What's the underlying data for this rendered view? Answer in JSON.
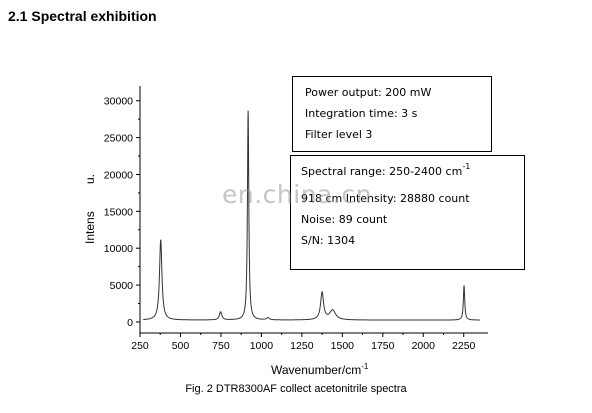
{
  "page": {
    "heading": "2.1 Spectral exhibition",
    "caption": "Fig. 2 DTR8300AF collect acetonitrile spectra",
    "watermark": "en.china.cn"
  },
  "annotations": {
    "box1": [
      "Power output: 200 mW",
      "Integration time: 3 s",
      "Filter level 3"
    ],
    "box2": {
      "range_prefix": "Spectral range: 250-2400 cm",
      "range_sup": "-1",
      "lines": [
        "918 cm   Intensity: 28880 count",
        "Noise: 89 count",
        "S/N: 1304"
      ]
    }
  },
  "colors": {
    "line": "#333333",
    "axis": "#000000"
  },
  "chart_data": {
    "type": "line",
    "title": "",
    "xlabel": "Wavenumber/cm",
    "xlabel_sup": "-1",
    "ylabel": "Intens",
    "ylabel_fragment": "u.",
    "xlim": [
      250,
      2400
    ],
    "ylim": [
      -1500,
      32000
    ],
    "xticks": [
      250,
      500,
      750,
      1000,
      1250,
      1500,
      1750,
      2000,
      2250
    ],
    "yticks": [
      0,
      5000,
      10000,
      15000,
      20000,
      25000,
      30000
    ],
    "series": [
      {
        "peaks": [
          {
            "x": 378,
            "y": 10900,
            "w": 9
          },
          {
            "x": 748,
            "y": 1100,
            "w": 9
          },
          {
            "x": 918,
            "y": 28400,
            "w": 5
          },
          {
            "x": 1040,
            "y": 300,
            "w": 10
          },
          {
            "x": 1375,
            "y": 3700,
            "w": 11
          },
          {
            "x": 1440,
            "y": 1300,
            "w": 22
          },
          {
            "x": 2252,
            "y": 4700,
            "w": 5
          }
        ],
        "baseline": 250,
        "x_range": [
          270,
          2350
        ]
      }
    ]
  }
}
